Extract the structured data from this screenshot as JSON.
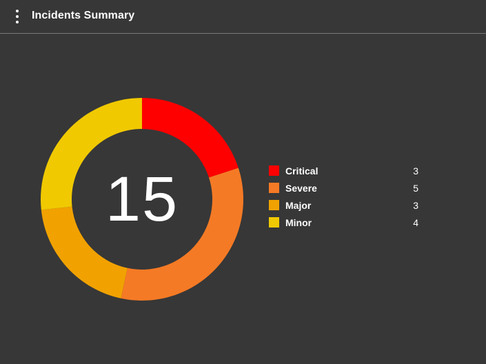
{
  "header": {
    "title": "Incidents Summary",
    "menu_icon": "more-vert-icon"
  },
  "colors": {
    "background": "#373737",
    "divider": "#7a7a7a",
    "text": "#ffffff"
  },
  "chart_data": {
    "type": "pie",
    "title": "Incidents Summary",
    "donut": true,
    "center_label": "15",
    "legend_position": "right",
    "categories": [
      "Critical",
      "Severe",
      "Major",
      "Minor"
    ],
    "values": [
      3,
      5,
      3,
      4
    ],
    "colors": [
      "#fe0000",
      "#f57a25",
      "#f1a200",
      "#f0c900"
    ]
  }
}
